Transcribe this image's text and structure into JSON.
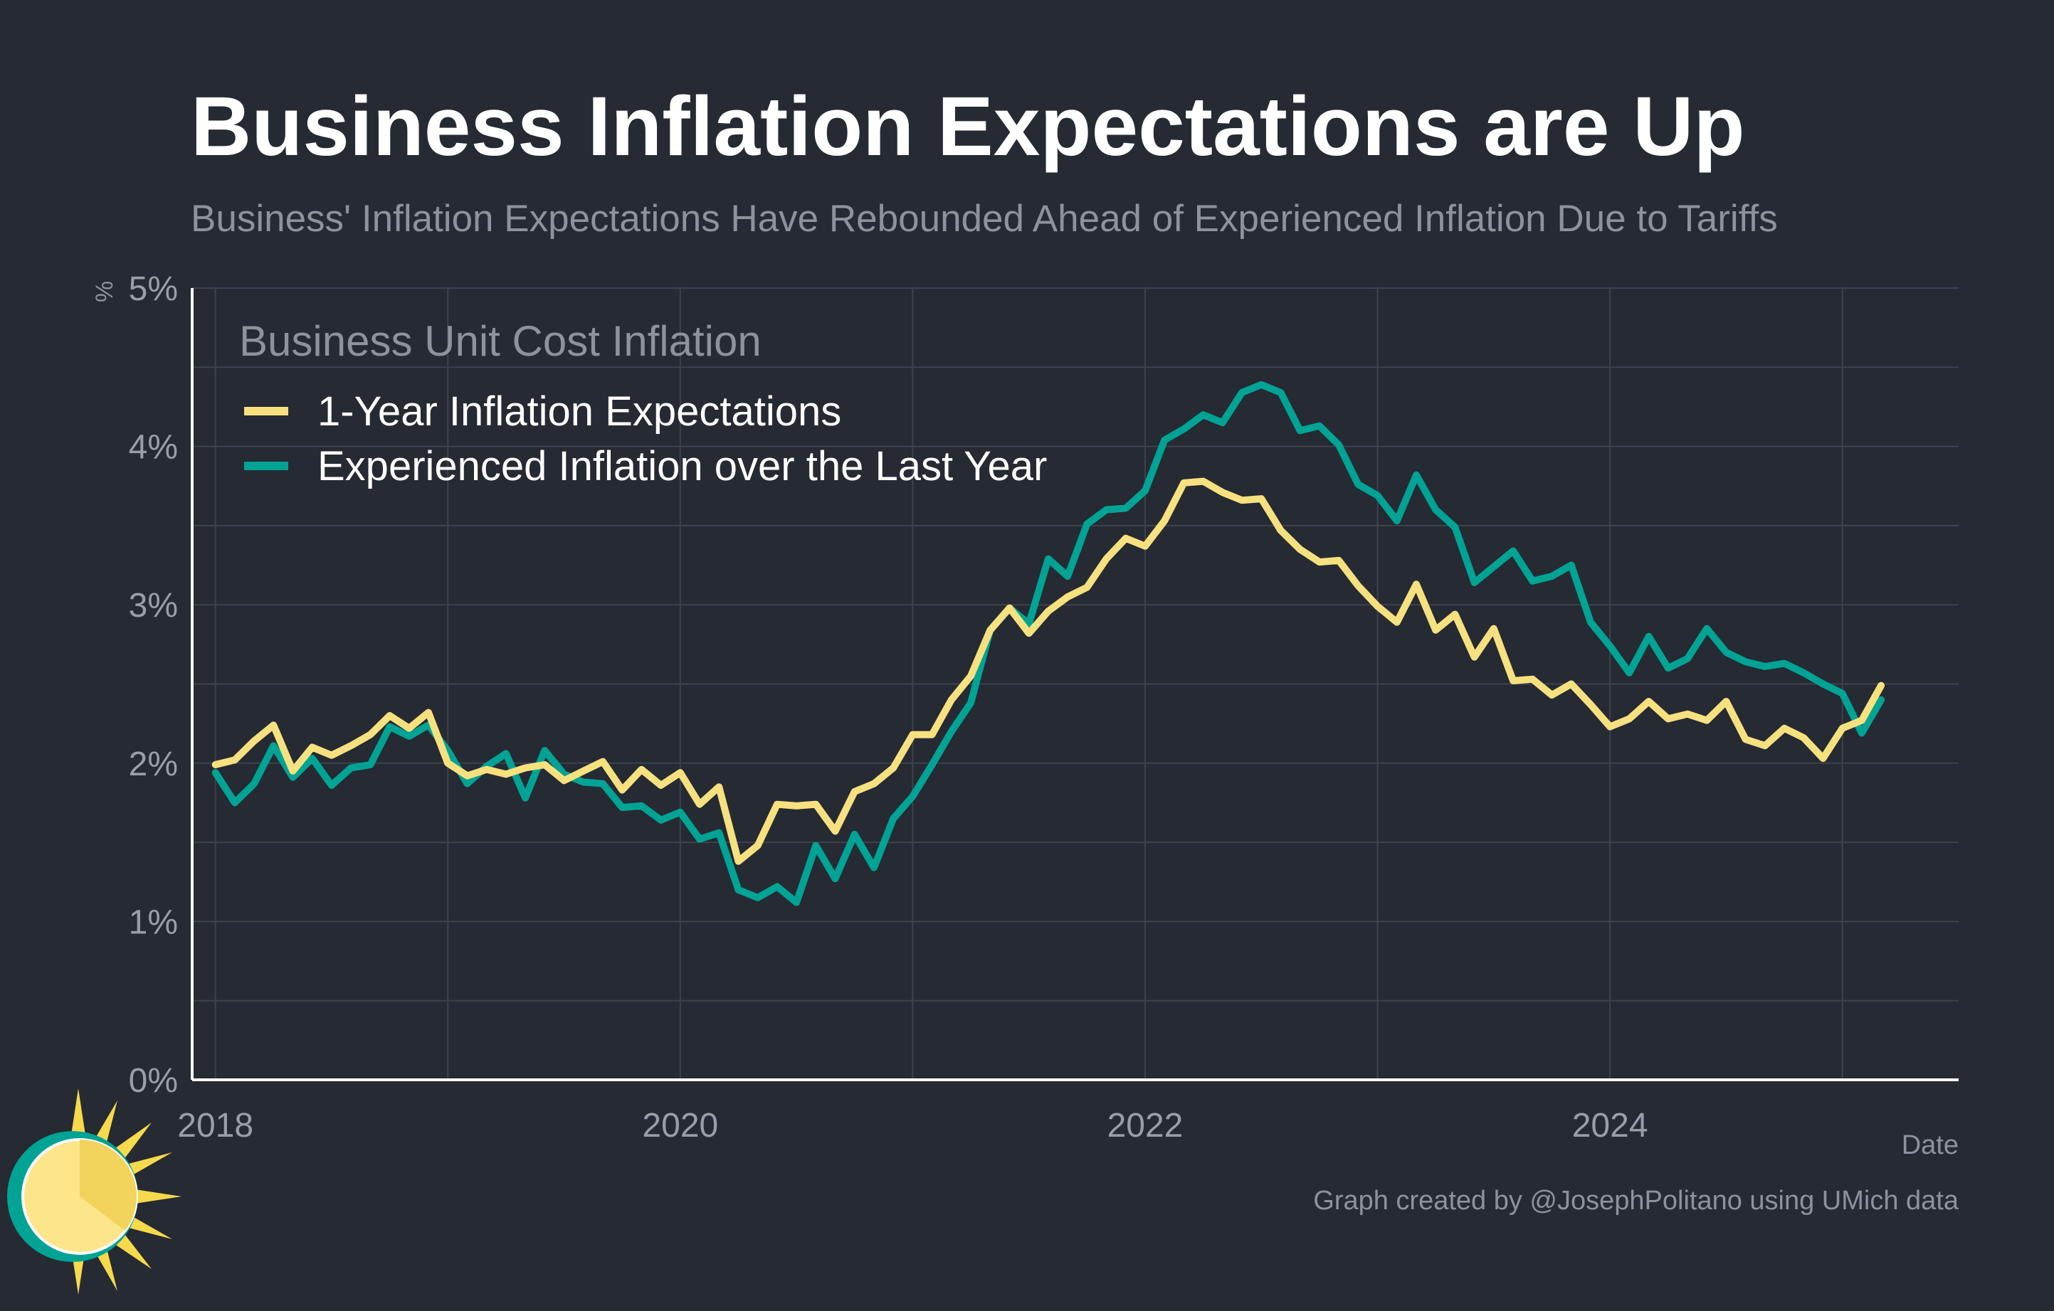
{
  "title": "Business Inflation Expectations are Up",
  "subtitle": "Business' Inflation Expectations Have Rebounded Ahead of Experienced Inflation Due to Tariffs",
  "credit": "Graph created by @JosephPolitano using UMich data",
  "colors": {
    "background": "#252a33",
    "grid": "#3d434d",
    "axis": "#ffffff",
    "tick_text": "#9a9ea6",
    "series_expectations": "#f7e17f",
    "series_experienced": "#00a394"
  },
  "chart_data": {
    "type": "line",
    "xlabel": "Date",
    "ylabel": "%",
    "ylim": [
      0,
      5
    ],
    "yticks": [
      "0%",
      "1%",
      "2%",
      "3%",
      "4%",
      "5%"
    ],
    "xticks": [
      "2018",
      "2020",
      "2022",
      "2024"
    ],
    "grid": true,
    "legend_title": "Business Unit Cost Inflation",
    "legend_position": "top-left",
    "series": [
      {
        "name": "1-Year Inflation Expectations",
        "color": "#f7e17f",
        "points": [
          [
            "2018-01",
            1.99
          ],
          [
            "2018-02",
            2.02
          ],
          [
            "2018-03",
            2.14
          ],
          [
            "2018-04",
            2.24
          ],
          [
            "2018-05",
            1.95
          ],
          [
            "2018-06",
            2.1
          ],
          [
            "2018-07",
            2.05
          ],
          [
            "2018-08",
            2.11
          ],
          [
            "2018-09",
            2.18
          ],
          [
            "2018-10",
            2.3
          ],
          [
            "2018-11",
            2.22
          ],
          [
            "2018-12",
            2.32
          ],
          [
            "2019-01",
            2.0
          ],
          [
            "2019-02",
            1.92
          ],
          [
            "2019-03",
            1.96
          ],
          [
            "2019-04",
            1.93
          ],
          [
            "2019-05",
            1.97
          ],
          [
            "2019-06",
            1.99
          ],
          [
            "2019-07",
            1.89
          ],
          [
            "2019-08",
            1.95
          ],
          [
            "2019-09",
            2.01
          ],
          [
            "2019-10",
            1.83
          ],
          [
            "2019-11",
            1.96
          ],
          [
            "2019-12",
            1.86
          ],
          [
            "2020-01",
            1.94
          ],
          [
            "2020-02",
            1.74
          ],
          [
            "2020-03",
            1.85
          ],
          [
            "2020-04",
            1.38
          ],
          [
            "2020-05",
            1.48
          ],
          [
            "2020-06",
            1.74
          ],
          [
            "2020-07",
            1.73
          ],
          [
            "2020-08",
            1.74
          ],
          [
            "2020-09",
            1.57
          ],
          [
            "2020-10",
            1.82
          ],
          [
            "2020-11",
            1.87
          ],
          [
            "2020-12",
            1.97
          ],
          [
            "2021-01",
            2.18
          ],
          [
            "2021-02",
            2.18
          ],
          [
            "2021-03",
            2.4
          ],
          [
            "2021-04",
            2.55
          ],
          [
            "2021-05",
            2.84
          ],
          [
            "2021-06",
            2.98
          ],
          [
            "2021-07",
            2.82
          ],
          [
            "2021-08",
            2.96
          ],
          [
            "2021-09",
            3.05
          ],
          [
            "2021-10",
            3.11
          ],
          [
            "2021-11",
            3.29
          ],
          [
            "2021-12",
            3.42
          ],
          [
            "2022-01",
            3.37
          ],
          [
            "2022-02",
            3.53
          ],
          [
            "2022-03",
            3.77
          ],
          [
            "2022-04",
            3.78
          ],
          [
            "2022-05",
            3.71
          ],
          [
            "2022-06",
            3.66
          ],
          [
            "2022-07",
            3.67
          ],
          [
            "2022-08",
            3.47
          ],
          [
            "2022-09",
            3.35
          ],
          [
            "2022-10",
            3.27
          ],
          [
            "2022-11",
            3.28
          ],
          [
            "2022-12",
            3.12
          ],
          [
            "2023-01",
            2.99
          ],
          [
            "2023-02",
            2.89
          ],
          [
            "2023-03",
            3.13
          ],
          [
            "2023-04",
            2.84
          ],
          [
            "2023-05",
            2.94
          ],
          [
            "2023-06",
            2.67
          ],
          [
            "2023-07",
            2.85
          ],
          [
            "2023-08",
            2.52
          ],
          [
            "2023-09",
            2.53
          ],
          [
            "2023-10",
            2.43
          ],
          [
            "2023-11",
            2.5
          ],
          [
            "2023-12",
            2.37
          ],
          [
            "2024-01",
            2.23
          ],
          [
            "2024-02",
            2.28
          ],
          [
            "2024-03",
            2.39
          ],
          [
            "2024-04",
            2.28
          ],
          [
            "2024-05",
            2.31
          ],
          [
            "2024-06",
            2.27
          ],
          [
            "2024-07",
            2.39
          ],
          [
            "2024-08",
            2.15
          ],
          [
            "2024-09",
            2.11
          ],
          [
            "2024-10",
            2.22
          ],
          [
            "2024-11",
            2.16
          ],
          [
            "2024-12",
            2.03
          ],
          [
            "2025-01",
            2.22
          ],
          [
            "2025-02",
            2.27
          ],
          [
            "2025-03",
            2.49
          ]
        ]
      },
      {
        "name": "Experienced Inflation over the Last Year",
        "color": "#00a394",
        "points": [
          [
            "2018-01",
            1.94
          ],
          [
            "2018-02",
            1.75
          ],
          [
            "2018-03",
            1.87
          ],
          [
            "2018-04",
            2.11
          ],
          [
            "2018-05",
            1.91
          ],
          [
            "2018-06",
            2.03
          ],
          [
            "2018-07",
            1.86
          ],
          [
            "2018-08",
            1.97
          ],
          [
            "2018-09",
            1.99
          ],
          [
            "2018-10",
            2.23
          ],
          [
            "2018-11",
            2.17
          ],
          [
            "2018-12",
            2.24
          ],
          [
            "2019-01",
            2.08
          ],
          [
            "2019-02",
            1.87
          ],
          [
            "2019-03",
            1.98
          ],
          [
            "2019-04",
            2.06
          ],
          [
            "2019-05",
            1.78
          ],
          [
            "2019-06",
            2.08
          ],
          [
            "2019-07",
            1.93
          ],
          [
            "2019-08",
            1.88
          ],
          [
            "2019-09",
            1.87
          ],
          [
            "2019-10",
            1.72
          ],
          [
            "2019-11",
            1.73
          ],
          [
            "2019-12",
            1.64
          ],
          [
            "2020-01",
            1.69
          ],
          [
            "2020-02",
            1.52
          ],
          [
            "2020-03",
            1.56
          ],
          [
            "2020-04",
            1.2
          ],
          [
            "2020-05",
            1.15
          ],
          [
            "2020-06",
            1.22
          ],
          [
            "2020-07",
            1.12
          ],
          [
            "2020-08",
            1.48
          ],
          [
            "2020-09",
            1.27
          ],
          [
            "2020-10",
            1.55
          ],
          [
            "2020-11",
            1.34
          ],
          [
            "2020-12",
            1.65
          ],
          [
            "2021-01",
            1.79
          ],
          [
            "2021-02",
            1.99
          ],
          [
            "2021-03",
            2.2
          ],
          [
            "2021-04",
            2.38
          ],
          [
            "2021-05",
            2.84
          ],
          [
            "2021-06",
            2.98
          ],
          [
            "2021-07",
            2.88
          ],
          [
            "2021-08",
            3.29
          ],
          [
            "2021-09",
            3.18
          ],
          [
            "2021-10",
            3.51
          ],
          [
            "2021-11",
            3.6
          ],
          [
            "2021-12",
            3.61
          ],
          [
            "2022-01",
            3.72
          ],
          [
            "2022-02",
            4.04
          ],
          [
            "2022-03",
            4.11
          ],
          [
            "2022-04",
            4.2
          ],
          [
            "2022-05",
            4.15
          ],
          [
            "2022-06",
            4.34
          ],
          [
            "2022-07",
            4.39
          ],
          [
            "2022-08",
            4.34
          ],
          [
            "2022-09",
            4.1
          ],
          [
            "2022-10",
            4.13
          ],
          [
            "2022-11",
            4.01
          ],
          [
            "2022-12",
            3.76
          ],
          [
            "2023-01",
            3.69
          ],
          [
            "2023-02",
            3.53
          ],
          [
            "2023-03",
            3.82
          ],
          [
            "2023-04",
            3.6
          ],
          [
            "2023-05",
            3.49
          ],
          [
            "2023-06",
            3.14
          ],
          [
            "2023-07",
            3.24
          ],
          [
            "2023-08",
            3.34
          ],
          [
            "2023-09",
            3.15
          ],
          [
            "2023-10",
            3.18
          ],
          [
            "2023-11",
            3.25
          ],
          [
            "2023-12",
            2.89
          ],
          [
            "2024-01",
            2.74
          ],
          [
            "2024-02",
            2.57
          ],
          [
            "2024-03",
            2.8
          ],
          [
            "2024-04",
            2.6
          ],
          [
            "2024-05",
            2.66
          ],
          [
            "2024-06",
            2.85
          ],
          [
            "2024-07",
            2.7
          ],
          [
            "2024-08",
            2.64
          ],
          [
            "2024-09",
            2.61
          ],
          [
            "2024-10",
            2.63
          ],
          [
            "2024-11",
            2.57
          ],
          [
            "2024-12",
            2.5
          ],
          [
            "2025-01",
            2.44
          ],
          [
            "2025-02",
            2.19
          ],
          [
            "2025-03",
            2.4
          ]
        ]
      }
    ]
  }
}
